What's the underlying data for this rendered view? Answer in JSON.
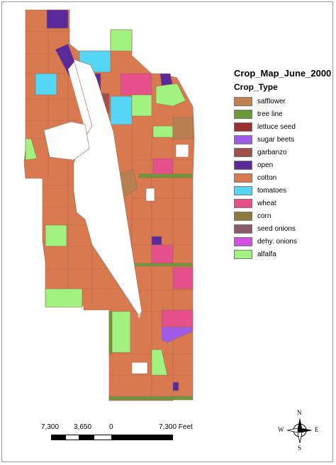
{
  "legend": {
    "title": "Crop_Map_June_2000",
    "subtitle": "Crop_Type",
    "items": [
      {
        "label": "safflower",
        "color": "#c0804f"
      },
      {
        "label": "tree line",
        "color": "#6a9a3a"
      },
      {
        "label": "lettuce seed",
        "color": "#9b2f2f"
      },
      {
        "label": "sugar beets",
        "color": "#a05be6"
      },
      {
        "label": "garbanzo",
        "color": "#a0504b"
      },
      {
        "label": "open",
        "color": "#5a2a9a"
      },
      {
        "label": "cotton",
        "color": "#d8794f"
      },
      {
        "label": "tomatoes",
        "color": "#54d6f5"
      },
      {
        "label": "wheat",
        "color": "#e5508a"
      },
      {
        "label": "corn",
        "color": "#8b7a3a"
      },
      {
        "label": "seed onions",
        "color": "#8a5a6a"
      },
      {
        "label": "dehy. onions",
        "color": "#d050e0"
      },
      {
        "label": "alfalfa",
        "color": "#a2f27f"
      }
    ]
  },
  "scale": {
    "labels": [
      "7,300",
      "3,650",
      "0",
      "7,300 Feet"
    ]
  },
  "north_arrow": {
    "n": "N",
    "s": "S",
    "e": "E",
    "w": "W"
  }
}
